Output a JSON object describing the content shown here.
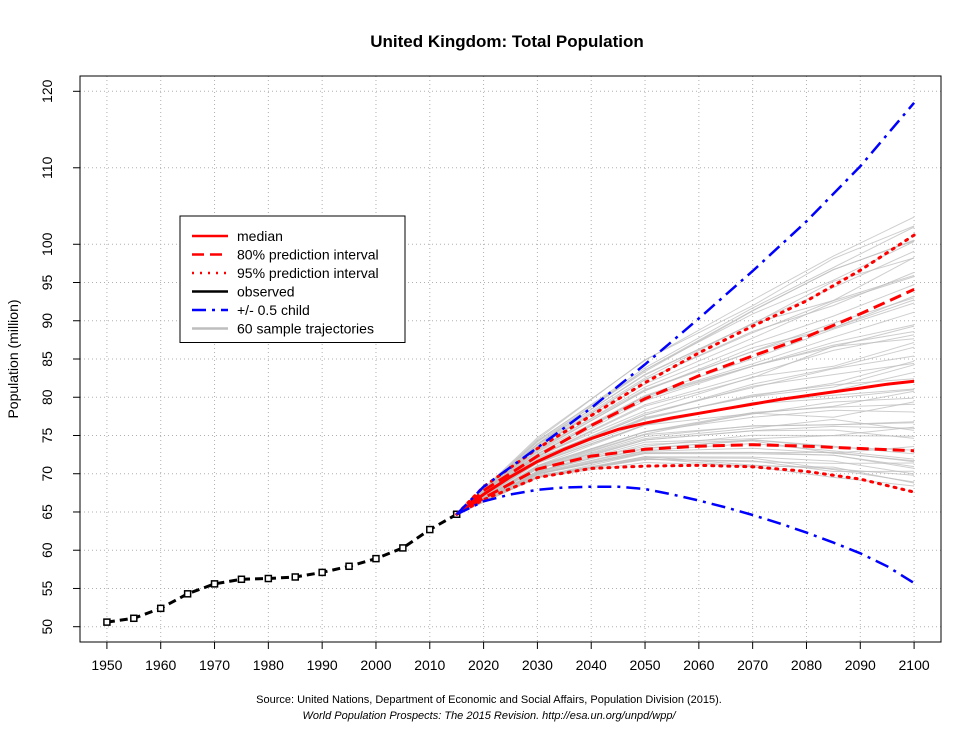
{
  "chart_data": {
    "type": "line",
    "title": "United Kingdom: Total Population",
    "xlabel": "",
    "ylabel": "Population (million)",
    "xlim": [
      1945,
      2105
    ],
    "ylim": [
      48,
      122
    ],
    "x_ticks": [
      1950,
      1960,
      1970,
      1980,
      1990,
      2000,
      2010,
      2020,
      2030,
      2040,
      2050,
      2060,
      2070,
      2080,
      2090,
      2100
    ],
    "y_ticks": [
      50,
      55,
      60,
      65,
      70,
      75,
      80,
      85,
      90,
      95,
      100,
      110,
      120
    ],
    "grid": true,
    "legend_position": "top-left",
    "legend": [
      {
        "label": "median",
        "color": "#ff0000",
        "style": "solid"
      },
      {
        "label": "80% prediction interval",
        "color": "#ff0000",
        "style": "dashed"
      },
      {
        "label": "95% prediction interval",
        "color": "#ff0000",
        "style": "dotted"
      },
      {
        "label": "observed",
        "color": "#000000",
        "style": "solid"
      },
      {
        "label": "+/- 0.5 child",
        "color": "#0000ff",
        "style": "dashdot"
      },
      {
        "label": "60 sample trajectories",
        "color": "#bebebe",
        "style": "solid"
      }
    ],
    "series": [
      {
        "name": "observed",
        "color": "#000000",
        "x": [
          1950,
          1955,
          1960,
          1965,
          1970,
          1975,
          1980,
          1985,
          1990,
          1995,
          2000,
          2005,
          2010,
          2015
        ],
        "y": [
          50.6,
          51.1,
          52.4,
          54.3,
          55.6,
          56.2,
          56.3,
          56.5,
          57.1,
          57.9,
          58.9,
          60.3,
          62.7,
          64.7
        ]
      },
      {
        "name": "median",
        "color": "#ff0000",
        "x": [
          2015,
          2020,
          2025,
          2030,
          2035,
          2040,
          2045,
          2050,
          2055,
          2060,
          2065,
          2070,
          2075,
          2080,
          2085,
          2090,
          2095,
          2100
        ],
        "y": [
          64.7,
          67.3,
          69.6,
          71.6,
          73.2,
          74.6,
          75.8,
          76.6,
          77.3,
          77.9,
          78.5,
          79.1,
          79.7,
          80.2,
          80.7,
          81.2,
          81.7,
          82.1
        ]
      },
      {
        "name": "80% prediction interval upper",
        "color": "#ff0000",
        "x": [
          2015,
          2020,
          2030,
          2040,
          2050,
          2060,
          2070,
          2080,
          2090,
          2100
        ],
        "y": [
          64.7,
          67.8,
          72.3,
          76.3,
          79.8,
          82.8,
          85.4,
          87.9,
          90.9,
          94.1
        ]
      },
      {
        "name": "80% prediction interval lower",
        "color": "#ff0000",
        "x": [
          2015,
          2020,
          2030,
          2040,
          2050,
          2060,
          2070,
          2080,
          2090,
          2100
        ],
        "y": [
          64.7,
          66.8,
          70.6,
          72.3,
          73.2,
          73.6,
          73.8,
          73.6,
          73.3,
          73.0
        ]
      },
      {
        "name": "95% prediction interval upper",
        "color": "#ff0000",
        "x": [
          2015,
          2020,
          2030,
          2040,
          2050,
          2060,
          2070,
          2080,
          2090,
          2100
        ],
        "y": [
          64.7,
          68.3,
          73.3,
          77.6,
          81.9,
          85.8,
          89.3,
          92.6,
          96.6,
          101.2
        ]
      },
      {
        "name": "95% prediction interval lower",
        "color": "#ff0000",
        "x": [
          2015,
          2020,
          2030,
          2040,
          2050,
          2060,
          2070,
          2080,
          2090,
          2100
        ],
        "y": [
          64.7,
          66.6,
          69.5,
          70.7,
          71.0,
          71.1,
          70.9,
          70.3,
          69.3,
          67.6
        ]
      },
      {
        "name": "+/- 0.5 child upper",
        "color": "#0000ff",
        "x": [
          2015,
          2020,
          2030,
          2040,
          2050,
          2060,
          2070,
          2080,
          2090,
          2100
        ],
        "y": [
          64.7,
          68.3,
          73.4,
          78.6,
          84.3,
          90.3,
          96.5,
          103.0,
          110.2,
          118.5
        ]
      },
      {
        "name": "+/- 0.5 child lower",
        "color": "#0000ff",
        "x": [
          2015,
          2020,
          2025,
          2030,
          2035,
          2040,
          2045,
          2050,
          2055,
          2060,
          2065,
          2070,
          2075,
          2080,
          2085,
          2090,
          2095,
          2100
        ],
        "y": [
          64.7,
          66.4,
          67.3,
          67.9,
          68.2,
          68.3,
          68.3,
          68.0,
          67.3,
          66.5,
          65.6,
          64.6,
          63.5,
          62.3,
          61.0,
          59.6,
          57.9,
          55.7
        ]
      }
    ],
    "sample_trajectories": {
      "count": 60,
      "color": "#bebebe",
      "x": [
        2015,
        2030,
        2050,
        2070,
        2085,
        2100
      ],
      "end_range": [
        69,
        104
      ]
    }
  },
  "source": {
    "line1": "Source: United Nations, Department of Economic and Social Affairs, Population Division (2015).",
    "line2": "World Population Prospects: The 2015 Revision. http://esa.un.org/unpd/wpp/"
  }
}
